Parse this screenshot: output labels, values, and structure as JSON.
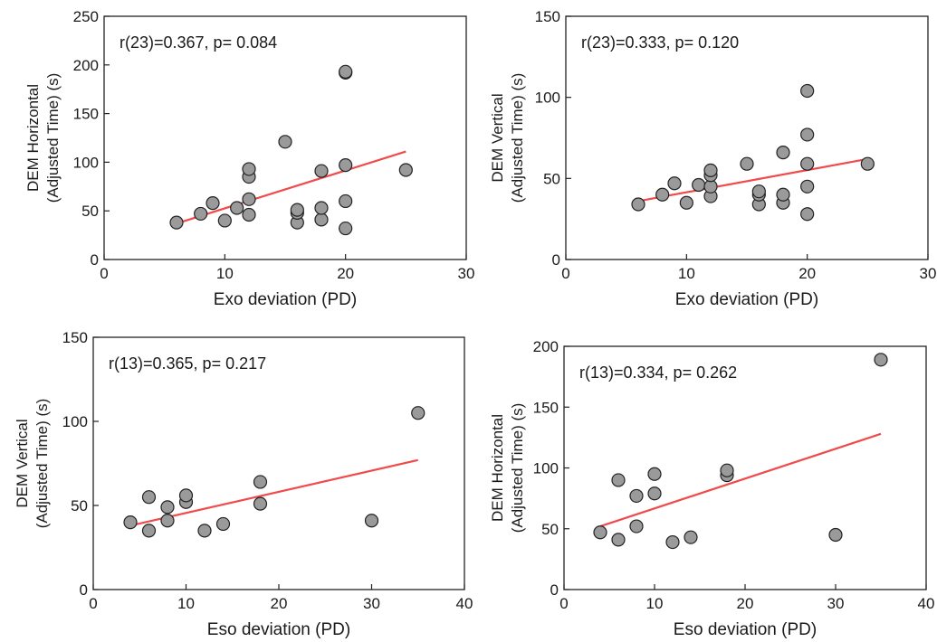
{
  "chart_data": [
    {
      "type": "scatter",
      "annotation": "r(23)=0.367, p= 0.084",
      "xlabel": "Exo deviation (PD)",
      "ylabel": [
        "DEM Horizontal",
        "(Adjusted Time) (s)"
      ],
      "xlim": [
        0,
        30
      ],
      "ylim": [
        0,
        250
      ],
      "xticks": [
        0,
        10,
        20,
        30
      ],
      "yticks": [
        0,
        50,
        100,
        150,
        200,
        250
      ],
      "points": [
        [
          6,
          38
        ],
        [
          8,
          47
        ],
        [
          9,
          58
        ],
        [
          10,
          40
        ],
        [
          11,
          53
        ],
        [
          12,
          46
        ],
        [
          12,
          62
        ],
        [
          12,
          85
        ],
        [
          12,
          93
        ],
        [
          15,
          121
        ],
        [
          16,
          38
        ],
        [
          16,
          48
        ],
        [
          16,
          51
        ],
        [
          18,
          41
        ],
        [
          18,
          53
        ],
        [
          18,
          91
        ],
        [
          20,
          32
        ],
        [
          20,
          60
        ],
        [
          20,
          97
        ],
        [
          20,
          192
        ],
        [
          20,
          193
        ],
        [
          25,
          92
        ]
      ],
      "fit_line": [
        [
          6,
          37
        ],
        [
          25,
          111
        ]
      ],
      "marker_color": "#9a9a9a",
      "line_color": "#f04a4a"
    },
    {
      "type": "scatter",
      "annotation": "r(23)=0.333, p= 0.120",
      "xlabel": "Exo deviation (PD)",
      "ylabel": [
        "DEM Vertical",
        "(Adjusted Time) (s)"
      ],
      "xlim": [
        0,
        30
      ],
      "ylim": [
        0,
        150
      ],
      "xticks": [
        0,
        10,
        20,
        30
      ],
      "yticks": [
        0,
        50,
        100,
        150
      ],
      "points": [
        [
          6,
          34
        ],
        [
          8,
          40
        ],
        [
          9,
          47
        ],
        [
          10,
          35
        ],
        [
          11,
          46
        ],
        [
          12,
          39
        ],
        [
          12,
          45
        ],
        [
          12,
          52
        ],
        [
          12,
          55
        ],
        [
          15,
          59
        ],
        [
          16,
          34
        ],
        [
          16,
          40
        ],
        [
          16,
          42
        ],
        [
          18,
          35
        ],
        [
          18,
          40
        ],
        [
          18,
          66
        ],
        [
          20,
          28
        ],
        [
          20,
          45
        ],
        [
          20,
          59
        ],
        [
          20,
          77
        ],
        [
          20,
          104
        ],
        [
          25,
          59
        ]
      ],
      "fit_line": [
        [
          6,
          36
        ],
        [
          25,
          62
        ]
      ],
      "marker_color": "#9a9a9a",
      "line_color": "#f04a4a"
    },
    {
      "type": "scatter",
      "annotation": "r(13)=0.365, p= 0.217",
      "xlabel": "Eso deviation (PD)",
      "ylabel": [
        "DEM Vertical",
        "(Adjusted Time) (s)"
      ],
      "xlim": [
        0,
        40
      ],
      "ylim": [
        0,
        150
      ],
      "xticks": [
        0,
        10,
        20,
        30,
        40
      ],
      "yticks": [
        0,
        50,
        100,
        150
      ],
      "points": [
        [
          4,
          40
        ],
        [
          6,
          35
        ],
        [
          6,
          55
        ],
        [
          8,
          41
        ],
        [
          8,
          49
        ],
        [
          10,
          52
        ],
        [
          10,
          56
        ],
        [
          12,
          35
        ],
        [
          14,
          39
        ],
        [
          18,
          51
        ],
        [
          18,
          64
        ],
        [
          30,
          41
        ],
        [
          35,
          105
        ]
      ],
      "fit_line": [
        [
          4,
          38
        ],
        [
          35,
          77
        ]
      ],
      "marker_color": "#9a9a9a",
      "line_color": "#f04a4a"
    },
    {
      "type": "scatter",
      "annotation": "r(13)=0.334, p= 0.262",
      "xlabel": "Eso deviation (PD)",
      "ylabel": [
        "DEM Horizontal",
        "(Adjusted Time) (s)"
      ],
      "xlim": [
        0,
        40
      ],
      "ylim": [
        0,
        200
      ],
      "xticks": [
        0,
        10,
        20,
        30,
        40
      ],
      "yticks": [
        0,
        50,
        100,
        150,
        200
      ],
      "points": [
        [
          4,
          47
        ],
        [
          6,
          41
        ],
        [
          6,
          90
        ],
        [
          8,
          52
        ],
        [
          8,
          77
        ],
        [
          10,
          79
        ],
        [
          10,
          95
        ],
        [
          12,
          39
        ],
        [
          14,
          43
        ],
        [
          18,
          94
        ],
        [
          18,
          98
        ],
        [
          30,
          45
        ],
        [
          35,
          189
        ]
      ],
      "fit_line": [
        [
          4,
          52
        ],
        [
          35,
          128
        ]
      ],
      "marker_color": "#9a9a9a",
      "line_color": "#f04a4a"
    }
  ]
}
